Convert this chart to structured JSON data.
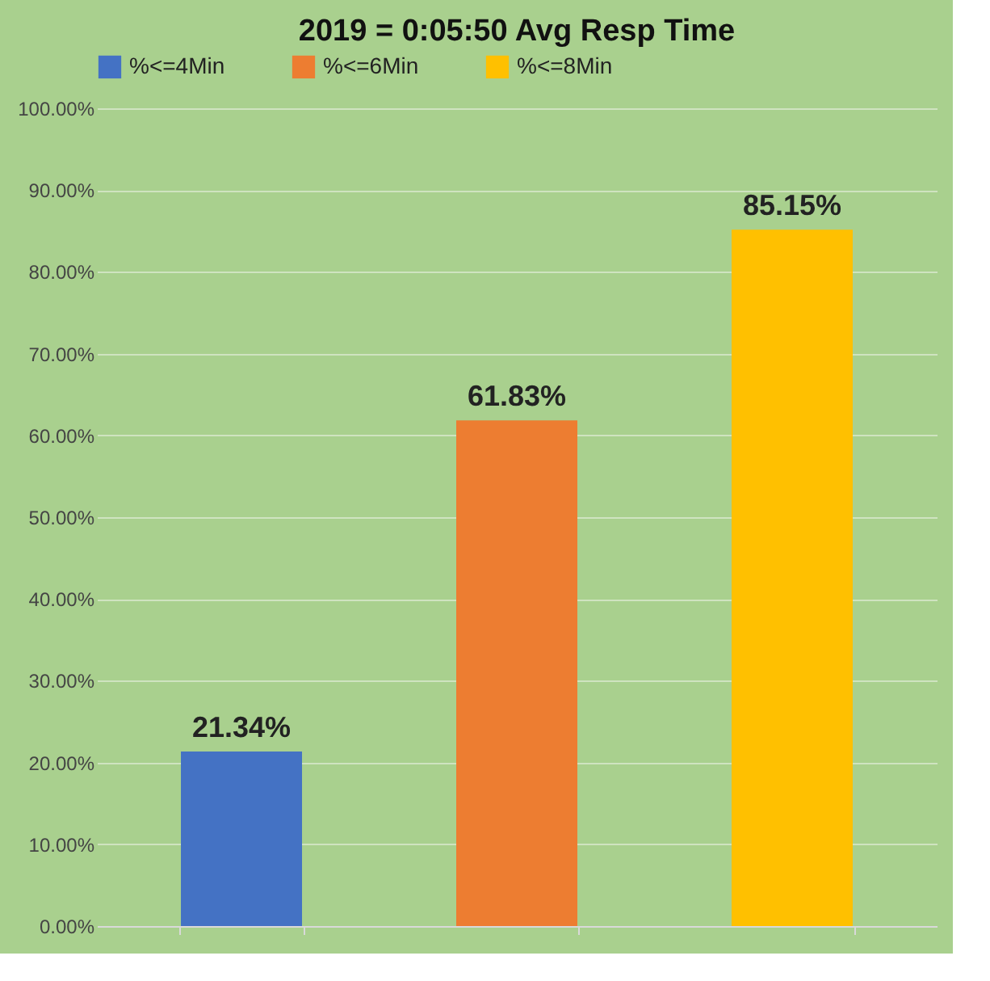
{
  "chart_data": {
    "type": "bar",
    "title": "2019 = 0:05:50 Avg Resp Time",
    "categories": [
      null,
      null,
      null
    ],
    "series": [
      {
        "name": "%<=4Min",
        "color": "#4472c4",
        "values": [
          21.34,
          null,
          null
        ],
        "value_labels": [
          "21.34%",
          null,
          null
        ]
      },
      {
        "name": "%<=6Min",
        "color": "#ed7d31",
        "values": [
          null,
          61.83,
          null
        ],
        "value_labels": [
          null,
          "61.83%",
          null
        ]
      },
      {
        "name": "%<=8Min",
        "color": "#ffc000",
        "values": [
          null,
          null,
          85.15
        ],
        "value_labels": [
          null,
          null,
          "85.15%"
        ]
      }
    ],
    "ylim": [
      0,
      100
    ],
    "yticks": [
      {
        "value": 0,
        "label": "0.00%"
      },
      {
        "value": 10,
        "label": "10.00%"
      },
      {
        "value": 20,
        "label": "20.00%"
      },
      {
        "value": 30,
        "label": "30.00%"
      },
      {
        "value": 40,
        "label": "40.00%"
      },
      {
        "value": 50,
        "label": "50.00%"
      },
      {
        "value": 60,
        "label": "60.00%"
      },
      {
        "value": 70,
        "label": "70.00%"
      },
      {
        "value": 80,
        "label": "80.00%"
      },
      {
        "value": 90,
        "label": "90.00%"
      },
      {
        "value": 100,
        "label": "100.00%"
      }
    ],
    "grid": "y",
    "legend": "top"
  }
}
